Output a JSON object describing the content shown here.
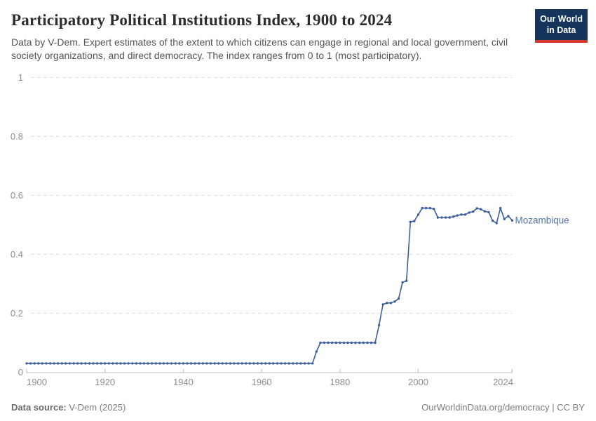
{
  "header": {
    "title": "Participatory Political Institutions Index, 1900 to 2024",
    "subtitle": "Data by V-Dem. Expert estimates of the extent to which citizens can engage in regional and local government, civil society organizations, and direct democracy. The index ranges from 0 to 1 (most participatory)."
  },
  "logo": {
    "line1": "Our World",
    "line2": "in Data",
    "bg": "#16355c",
    "accent": "#d8352b"
  },
  "chart_data": {
    "type": "line",
    "title": "Participatory Political Institutions Index, 1900 to 2024",
    "xlabel": "",
    "ylabel": "",
    "xlim": [
      1900,
      2024
    ],
    "ylim": [
      0,
      1
    ],
    "xticks": [
      1900,
      1920,
      1940,
      1960,
      1980,
      2000,
      2024
    ],
    "yticks": [
      0,
      0.2,
      0.4,
      0.6,
      0.8,
      1
    ],
    "grid": "horizontal-dashed",
    "legend_position": "end-of-line-label",
    "marker": "dot-every-year",
    "years": [
      1900,
      1901,
      1902,
      1903,
      1904,
      1905,
      1906,
      1907,
      1908,
      1909,
      1910,
      1911,
      1912,
      1913,
      1914,
      1915,
      1916,
      1917,
      1918,
      1919,
      1920,
      1921,
      1922,
      1923,
      1924,
      1925,
      1926,
      1927,
      1928,
      1929,
      1930,
      1931,
      1932,
      1933,
      1934,
      1935,
      1936,
      1937,
      1938,
      1939,
      1940,
      1941,
      1942,
      1943,
      1944,
      1945,
      1946,
      1947,
      1948,
      1949,
      1950,
      1951,
      1952,
      1953,
      1954,
      1955,
      1956,
      1957,
      1958,
      1959,
      1960,
      1961,
      1962,
      1963,
      1964,
      1965,
      1966,
      1967,
      1968,
      1969,
      1970,
      1971,
      1972,
      1973,
      1974,
      1975,
      1976,
      1977,
      1978,
      1979,
      1980,
      1981,
      1982,
      1983,
      1984,
      1985,
      1986,
      1987,
      1988,
      1989,
      1990,
      1991,
      1992,
      1993,
      1994,
      1995,
      1996,
      1997,
      1998,
      1999,
      2000,
      2001,
      2002,
      2003,
      2004,
      2005,
      2006,
      2007,
      2008,
      2009,
      2010,
      2011,
      2012,
      2013,
      2014,
      2015,
      2016,
      2017,
      2018,
      2019,
      2020,
      2021,
      2022,
      2023,
      2024
    ],
    "series": [
      {
        "name": "Mozambique",
        "color": "#3d5e9d",
        "label_color": "#5173ae",
        "values": [
          0.03,
          0.03,
          0.03,
          0.03,
          0.03,
          0.03,
          0.03,
          0.03,
          0.03,
          0.03,
          0.03,
          0.03,
          0.03,
          0.03,
          0.03,
          0.03,
          0.03,
          0.03,
          0.03,
          0.03,
          0.03,
          0.03,
          0.03,
          0.03,
          0.03,
          0.03,
          0.03,
          0.03,
          0.03,
          0.03,
          0.03,
          0.03,
          0.03,
          0.03,
          0.03,
          0.03,
          0.03,
          0.03,
          0.03,
          0.03,
          0.03,
          0.03,
          0.03,
          0.03,
          0.03,
          0.03,
          0.03,
          0.03,
          0.03,
          0.03,
          0.03,
          0.03,
          0.03,
          0.03,
          0.03,
          0.03,
          0.03,
          0.03,
          0.03,
          0.03,
          0.03,
          0.03,
          0.03,
          0.03,
          0.03,
          0.03,
          0.03,
          0.03,
          0.03,
          0.03,
          0.03,
          0.03,
          0.03,
          0.03,
          0.07,
          0.1,
          0.1,
          0.1,
          0.1,
          0.1,
          0.1,
          0.1,
          0.1,
          0.1,
          0.1,
          0.1,
          0.1,
          0.1,
          0.1,
          0.1,
          0.16,
          0.23,
          0.235,
          0.235,
          0.24,
          0.25,
          0.305,
          0.31,
          0.51,
          0.513,
          0.535,
          0.557,
          0.557,
          0.557,
          0.554,
          0.525,
          0.525,
          0.525,
          0.525,
          0.528,
          0.532,
          0.535,
          0.535,
          0.542,
          0.545,
          0.556,
          0.553,
          0.546,
          0.543,
          0.514,
          0.506,
          0.557,
          0.52,
          0.53,
          0.515
        ]
      }
    ]
  },
  "footer": {
    "source_label": "Data source:",
    "source_value": "V-Dem (2025)",
    "credit": "OurWorldinData.org/democracy | CC BY"
  },
  "colors": {
    "grid": "#dedede",
    "axis": "#bcbcbc",
    "tick_label": "#8e8e8e"
  }
}
